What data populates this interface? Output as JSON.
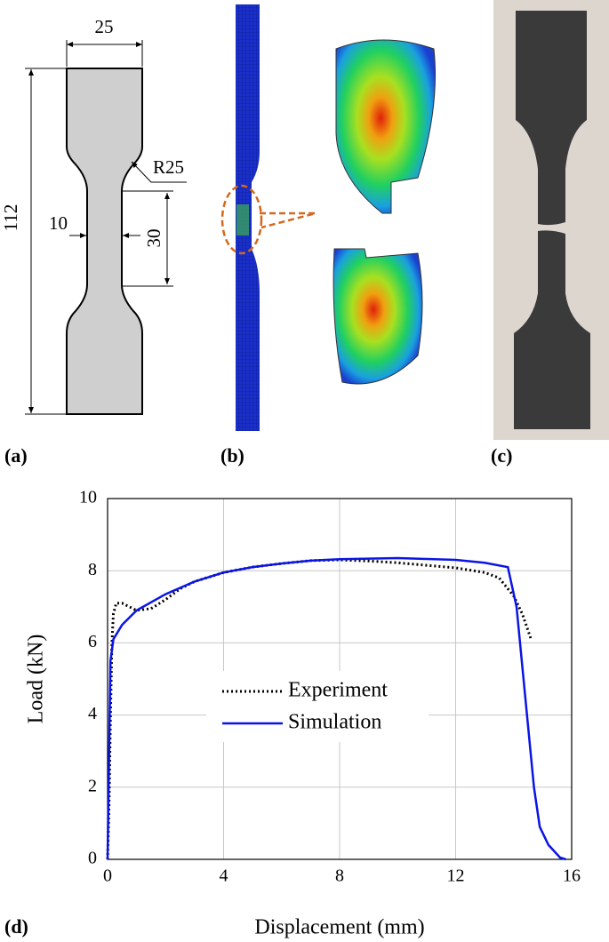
{
  "panels": {
    "a": {
      "label": "(a)",
      "width": "25",
      "length": "112",
      "radius": "R25",
      "gauge_width": "10",
      "gauge_length": "30"
    },
    "b": {
      "label": "(b)"
    },
    "c": {
      "label": "(c)"
    },
    "d": {
      "label": "(d)"
    }
  },
  "chart_data": {
    "type": "line",
    "xlabel": "Displacement (mm)",
    "ylabel": "Load (kN)",
    "xlim": [
      0,
      16
    ],
    "xticks": [
      0,
      4,
      8,
      12,
      16
    ],
    "ylim": [
      0,
      10
    ],
    "yticks": [
      0,
      2,
      4,
      6,
      8,
      10
    ],
    "grid": true,
    "series": [
      {
        "name": "Experiment",
        "color": "#000000",
        "line_style": "dotted",
        "x": [
          0,
          0.05,
          0.1,
          0.15,
          0.2,
          0.3,
          0.5,
          1.0,
          1.5,
          2,
          2.5,
          3,
          4,
          5,
          6,
          7,
          8,
          9,
          10,
          11,
          12,
          13,
          13.5,
          14,
          14.3,
          14.6
        ],
        "values": [
          0,
          1.5,
          4,
          6,
          6.8,
          7.1,
          7.1,
          6.9,
          6.95,
          7.2,
          7.5,
          7.7,
          7.95,
          8.1,
          8.2,
          8.28,
          8.3,
          8.27,
          8.22,
          8.15,
          8.08,
          7.95,
          7.8,
          7.3,
          6.8,
          6.1
        ]
      },
      {
        "name": "Simulation",
        "color": "#0a14e6",
        "line_style": "solid",
        "x": [
          0,
          0.1,
          0.2,
          0.5,
          1,
          2,
          3,
          4,
          5,
          6,
          7,
          8,
          10,
          12,
          13,
          13.8,
          14.1,
          14.4,
          14.7,
          14.9,
          15.2,
          15.6,
          15.8
        ],
        "values": [
          0,
          5.5,
          6.1,
          6.5,
          6.9,
          7.35,
          7.7,
          7.95,
          8.1,
          8.2,
          8.28,
          8.32,
          8.35,
          8.3,
          8.22,
          8.1,
          7.0,
          4.5,
          2,
          0.9,
          0.4,
          0.05,
          0
        ]
      }
    ]
  }
}
